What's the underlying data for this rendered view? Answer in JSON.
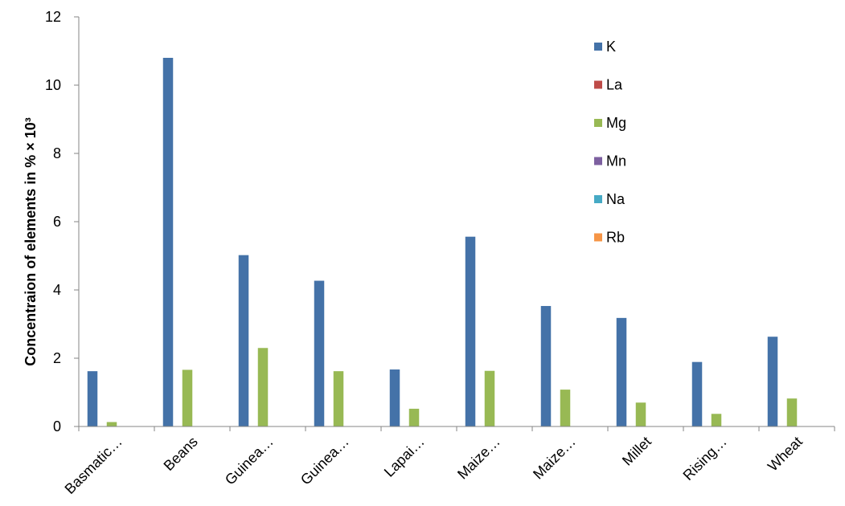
{
  "chart_data": {
    "type": "bar",
    "title": "",
    "xlabel": "",
    "ylabel": "Concentraion of elements in % × 10³",
    "ylim": [
      0,
      12
    ],
    "yticks": [
      "0",
      "2",
      "4",
      "6",
      "8",
      "10",
      "12"
    ],
    "grid": false,
    "legend_position": "top-right",
    "categories": [
      "Basmatic…",
      "Beans",
      "Guinea…",
      "Guinea…",
      "Lapai…",
      "Maize…",
      "Maize…",
      "Millet",
      "Rising…",
      "Wheat"
    ],
    "series": [
      {
        "name": "K",
        "color": "#4472A8",
        "values": [
          1.62,
          10.8,
          5.02,
          4.27,
          1.67,
          5.56,
          3.53,
          3.18,
          1.89,
          2.63
        ]
      },
      {
        "name": "La",
        "color": "#BE4B48",
        "values": [
          0,
          0,
          0,
          0,
          0,
          0,
          0,
          0,
          0,
          0
        ]
      },
      {
        "name": "Mg",
        "color": "#98B954",
        "values": [
          0.13,
          1.66,
          2.3,
          1.62,
          0.52,
          1.63,
          1.08,
          0.7,
          0.37,
          0.82
        ]
      },
      {
        "name": "Mn",
        "color": "#7D60A0",
        "values": [
          0,
          0,
          0,
          0,
          0,
          0,
          0,
          0,
          0,
          0
        ]
      },
      {
        "name": "Na",
        "color": "#46AAC5",
        "values": [
          0,
          0,
          0,
          0,
          0,
          0,
          0,
          0,
          0,
          0
        ]
      },
      {
        "name": "Rb",
        "color": "#F69546",
        "values": [
          0,
          0,
          0,
          0,
          0,
          0,
          0,
          0,
          0,
          0
        ]
      }
    ]
  }
}
